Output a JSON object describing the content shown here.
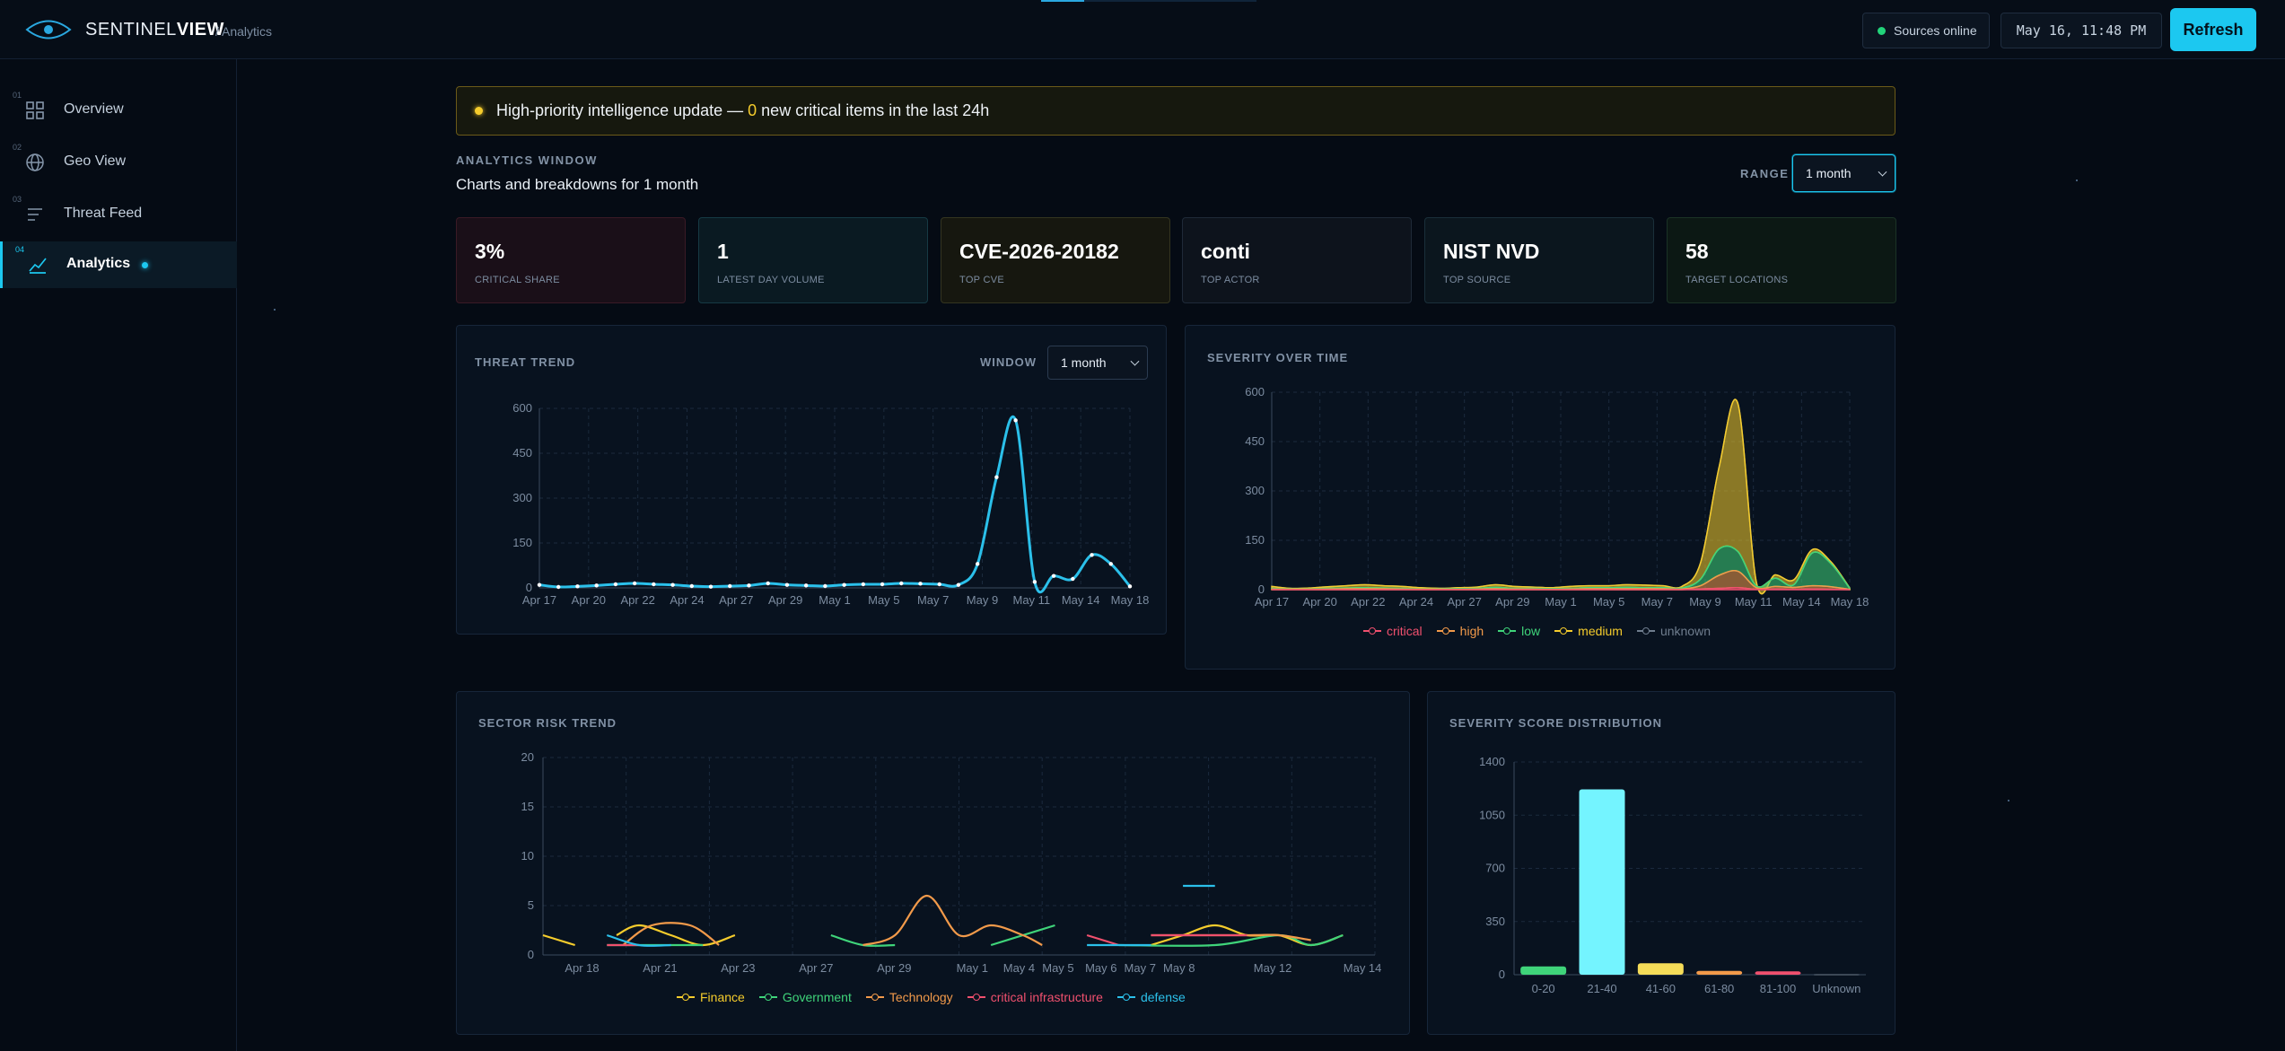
{
  "header": {
    "brand_prefix": "SENTINEL",
    "brand_suffix": "VIEW",
    "breadcrumb": "/ Analytics",
    "sources_status": "Sources online",
    "clock": "May 16, 11:48 PM",
    "refresh_label": "Refresh"
  },
  "sidebar": {
    "items": [
      {
        "num": "01",
        "label": "Overview",
        "icon": "grid-icon"
      },
      {
        "num": "02",
        "label": "Geo View",
        "icon": "globe-icon"
      },
      {
        "num": "03",
        "label": "Threat Feed",
        "icon": "list-icon"
      },
      {
        "num": "04",
        "label": "Analytics",
        "icon": "line-chart-icon",
        "active": true
      }
    ]
  },
  "banner": {
    "prefix": "High-priority intelligence update —",
    "count": "0",
    "suffix": "new critical items in the last 24h"
  },
  "window": {
    "kicker": "ANALYTICS WINDOW",
    "subtitle": "Charts and breakdowns for 1 month",
    "range_label": "RANGE",
    "range_value": "1 month"
  },
  "kpis": [
    {
      "value": "3%",
      "label": "CRITICAL SHARE"
    },
    {
      "value": "1",
      "label": "LATEST DAY VOLUME"
    },
    {
      "value": "CVE-2026-20182",
      "label": "TOP CVE"
    },
    {
      "value": "conti",
      "label": "TOP ACTOR"
    },
    {
      "value": "NIST NVD",
      "label": "TOP SOURCE"
    },
    {
      "value": "58",
      "label": "TARGET LOCATIONS"
    }
  ],
  "colors": {
    "accent": "#1cc8f0",
    "critical": "#f0506e",
    "high": "#f29a4a",
    "low": "#3fd47a",
    "medium": "#f5cc2c",
    "unknown": "#6f7d8e"
  },
  "threat_trend": {
    "title": "THREAT TREND",
    "window_label": "WINDOW",
    "window_value": "1 month"
  },
  "severity_over_time": {
    "title": "SEVERITY OVER TIME"
  },
  "sector_risk": {
    "title": "SECTOR RISK TREND"
  },
  "score_dist": {
    "title": "SEVERITY SCORE DISTRIBUTION"
  },
  "chart_data": [
    {
      "id": "threat_trend",
      "type": "line",
      "title": "THREAT TREND",
      "ylim": [
        0,
        600
      ],
      "yticks": [
        0,
        150,
        300,
        450,
        600
      ],
      "x_labels": [
        "Apr 17",
        "Apr 20",
        "Apr 22",
        "Apr 24",
        "Apr 27",
        "Apr 29",
        "May 1",
        "May 5",
        "May 7",
        "May 9",
        "May 11",
        "May 14",
        "May 18"
      ],
      "x": [
        "Apr 17",
        "Apr 18",
        "Apr 19",
        "Apr 20",
        "Apr 21",
        "Apr 22",
        "Apr 23",
        "Apr 24",
        "Apr 25",
        "Apr 26",
        "Apr 27",
        "Apr 28",
        "Apr 29",
        "Apr 30",
        "May 1",
        "May 2",
        "May 3",
        "May 4",
        "May 5",
        "May 6",
        "May 7",
        "May 8",
        "May 9",
        "May 10",
        "May 11",
        "May 12",
        "May 13",
        "May 14",
        "May 15",
        "May 16",
        "May 17",
        "May 18"
      ],
      "series": [
        {
          "values": [
            10,
            3,
            5,
            8,
            12,
            15,
            12,
            10,
            6,
            4,
            6,
            8,
            15,
            10,
            8,
            6,
            10,
            12,
            12,
            15,
            14,
            12,
            10,
            80,
            370,
            560,
            20,
            40,
            30,
            110,
            80,
            5
          ],
          "color": "#2bc0ea"
        }
      ],
      "grid": true
    },
    {
      "id": "severity_over_time",
      "type": "area",
      "title": "SEVERITY OVER TIME",
      "ylim": [
        0,
        600
      ],
      "yticks": [
        0,
        150,
        300,
        450,
        600
      ],
      "x_labels": [
        "Apr 17",
        "Apr 20",
        "Apr 22",
        "Apr 24",
        "Apr 27",
        "Apr 29",
        "May 1",
        "May 5",
        "May 7",
        "May 9",
        "May 11",
        "May 14",
        "May 18"
      ],
      "x": [
        "Apr 17",
        "Apr 18",
        "Apr 19",
        "Apr 20",
        "Apr 21",
        "Apr 22",
        "Apr 23",
        "Apr 24",
        "Apr 25",
        "Apr 26",
        "Apr 27",
        "Apr 28",
        "Apr 29",
        "Apr 30",
        "May 1",
        "May 2",
        "May 3",
        "May 4",
        "May 5",
        "May 6",
        "May 7",
        "May 8",
        "May 9",
        "May 10",
        "May 11",
        "May 12",
        "May 13",
        "May 14",
        "May 15",
        "May 16",
        "May 17",
        "May 18"
      ],
      "series": [
        {
          "name": "critical",
          "color": "#f0506e",
          "values": [
            0,
            0,
            0,
            0,
            0,
            0,
            0,
            0,
            0,
            0,
            0,
            0,
            0,
            0,
            0,
            0,
            0,
            0,
            0,
            0,
            0,
            0,
            0,
            2,
            4,
            6,
            1,
            2,
            1,
            2,
            1,
            0
          ]
        },
        {
          "name": "high",
          "color": "#f29a4a",
          "values": [
            2,
            1,
            1,
            2,
            3,
            3,
            3,
            2,
            1,
            1,
            1,
            2,
            3,
            2,
            2,
            1,
            2,
            3,
            3,
            3,
            3,
            3,
            2,
            10,
            40,
            50,
            5,
            8,
            6,
            10,
            8,
            1
          ]
        },
        {
          "name": "low",
          "color": "#3fd47a",
          "values": [
            2,
            1,
            1,
            2,
            2,
            3,
            2,
            2,
            1,
            1,
            2,
            2,
            4,
            2,
            2,
            2,
            2,
            3,
            3,
            4,
            3,
            3,
            3,
            20,
            80,
            60,
            5,
            25,
            8,
            100,
            70,
            3
          ]
        },
        {
          "name": "medium",
          "color": "#f5cc2c",
          "values": [
            6,
            2,
            3,
            5,
            7,
            9,
            7,
            6,
            4,
            2,
            3,
            4,
            8,
            6,
            4,
            3,
            6,
            6,
            6,
            8,
            8,
            6,
            5,
            50,
            250,
            450,
            10,
            10,
            15,
            10,
            5,
            1
          ]
        },
        {
          "name": "unknown",
          "color": "#6f7d8e",
          "values": [
            0,
            0,
            0,
            0,
            0,
            0,
            0,
            0,
            0,
            0,
            0,
            0,
            0,
            0,
            0,
            0,
            0,
            0,
            0,
            0,
            0,
            0,
            0,
            0,
            0,
            0,
            0,
            0,
            0,
            0,
            0,
            0
          ]
        }
      ],
      "legend": "bottom",
      "grid": true
    },
    {
      "id": "sector_risk",
      "type": "line",
      "title": "SECTOR RISK TREND",
      "ylim": [
        0,
        20
      ],
      "yticks": [
        0,
        5,
        10,
        15,
        20
      ],
      "x_labels": [
        "Apr 18",
        "Apr 21",
        "Apr 23",
        "Apr 27",
        "Apr 29",
        "May 1",
        "May 4",
        "May 5",
        "May 6",
        "May 7",
        "May 8",
        "May 12",
        "May 14"
      ],
      "series": [
        {
          "name": "Finance",
          "color": "#f5cc2c",
          "segments": [
            [
              [
                0,
                2
              ],
              [
                1,
                1
              ]
            ],
            [
              [
                2.3,
                2
              ],
              [
                3,
                3
              ],
              [
                4,
                2
              ],
              [
                5,
                1
              ],
              [
                6,
                2
              ]
            ],
            [
              [
                19,
                1
              ],
              [
                20,
                2
              ],
              [
                21,
                3
              ],
              [
                22,
                2
              ],
              [
                23,
                2
              ],
              [
                24,
                1
              ],
              [
                25,
                2
              ]
            ]
          ]
        },
        {
          "name": "Government",
          "color": "#3fd47a",
          "segments": [
            [
              [
                2,
                1
              ],
              [
                5,
                1
              ]
            ],
            [
              [
                9,
                2
              ],
              [
                10,
                1
              ],
              [
                11,
                1
              ]
            ],
            [
              [
                14,
                1
              ],
              [
                15,
                2
              ],
              [
                16,
                3
              ]
            ],
            [
              [
                18,
                1
              ],
              [
                21,
                1
              ],
              [
                23,
                2
              ],
              [
                24,
                1
              ],
              [
                25,
                2
              ]
            ]
          ]
        },
        {
          "name": "Technology",
          "color": "#f29a4a",
          "segments": [
            [
              [
                2.5,
                1
              ],
              [
                3.4,
                3
              ],
              [
                4.6,
                3
              ],
              [
                5.5,
                1
              ]
            ],
            [
              [
                10,
                1
              ],
              [
                11,
                2
              ],
              [
                12,
                6
              ],
              [
                13,
                2
              ],
              [
                14,
                3
              ],
              [
                15,
                2
              ],
              [
                15.6,
                1
              ]
            ],
            [
              [
                19,
                2
              ],
              [
                21,
                2
              ],
              [
                22,
                2
              ],
              [
                23,
                2
              ],
              [
                24,
                1.5
              ]
            ]
          ]
        },
        {
          "name": "critical infrastructure",
          "color": "#f0506e",
          "segments": [
            [
              [
                2,
                1
              ],
              [
                3,
                1
              ]
            ],
            [
              [
                17,
                2
              ],
              [
                18,
                1
              ]
            ],
            [
              [
                19,
                2
              ],
              [
                21,
                2
              ],
              [
                22,
                2
              ]
            ]
          ]
        },
        {
          "name": "defense",
          "color": "#2bc0ea",
          "segments": [
            [
              [
                2,
                2
              ],
              [
                3,
                1
              ],
              [
                4,
                1
              ]
            ],
            [
              [
                17,
                1
              ],
              [
                19,
                1
              ]
            ],
            [
              [
                20,
                7
              ],
              [
                21,
                7
              ]
            ]
          ]
        }
      ],
      "legend": "bottom",
      "grid": true
    },
    {
      "id": "score_dist",
      "type": "bar",
      "title": "SEVERITY SCORE DISTRIBUTION",
      "categories": [
        "0-20",
        "21-40",
        "41-60",
        "61-80",
        "81-100",
        "Unknown"
      ],
      "values": [
        55,
        1220,
        75,
        25,
        22,
        3
      ],
      "colors": [
        "#3fd47a",
        "#74f4ff",
        "#f5dc58",
        "#f29a4a",
        "#f0506e",
        "#6f7d8e"
      ],
      "ylim": [
        0,
        1400
      ],
      "yticks": [
        0,
        350,
        700,
        1050,
        1400
      ],
      "grid": true
    }
  ]
}
